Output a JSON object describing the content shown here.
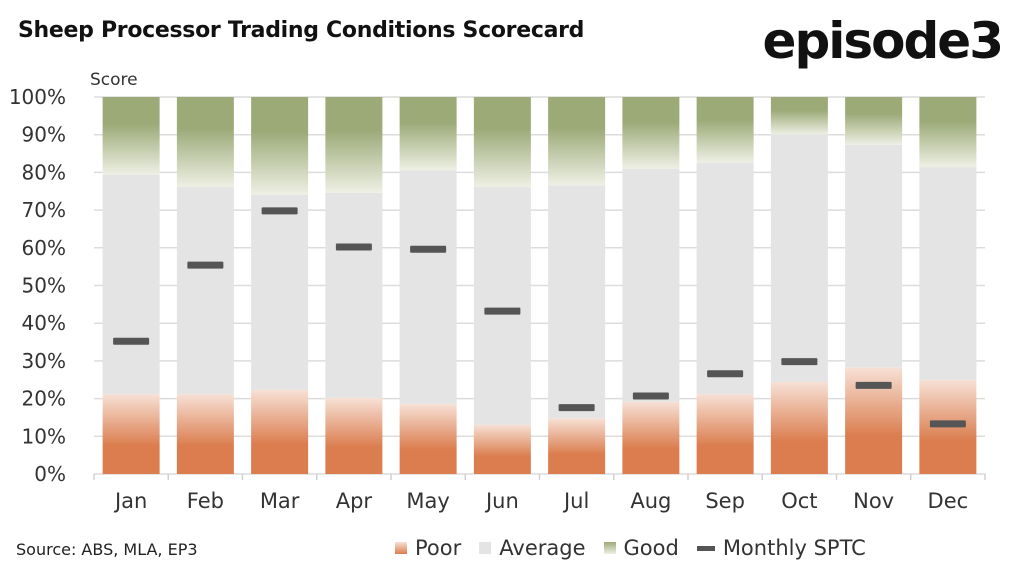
{
  "title": "Sheep Processor Trading Conditions Scorecard",
  "logo": "episode3",
  "source": "Source: ABS, MLA, EP3",
  "chart_data": {
    "type": "bar",
    "stacked": true,
    "ylabel": "Score",
    "ylim": [
      0,
      100
    ],
    "yticks": [
      "0%",
      "10%",
      "20%",
      "30%",
      "40%",
      "50%",
      "60%",
      "70%",
      "80%",
      "90%",
      "100%"
    ],
    "categories": [
      "Jan",
      "Feb",
      "Mar",
      "Apr",
      "May",
      "Jun",
      "Jul",
      "Aug",
      "Sep",
      "Oct",
      "Nov",
      "Dec"
    ],
    "series": [
      {
        "name": "Poor",
        "color": "#db7d4e",
        "values": [
          21.2,
          21.2,
          22.3,
          20.2,
          18.6,
          13.1,
          14.8,
          19.2,
          21.2,
          24.4,
          28.3,
          25.0
        ]
      },
      {
        "name": "Average",
        "color": "#e4e4e4",
        "values": [
          58.2,
          54.9,
          51.8,
          54.4,
          61.9,
          63.0,
          61.8,
          61.8,
          61.4,
          65.6,
          59.0,
          56.4
        ]
      },
      {
        "name": "Good",
        "color": "#9caa78",
        "values": [
          20.6,
          23.9,
          25.9,
          25.4,
          19.5,
          23.9,
          23.4,
          19.0,
          17.4,
          10.0,
          12.7,
          18.6
        ]
      }
    ],
    "line_marker_series": {
      "name": "Monthly SPTC",
      "color": "#555555",
      "values": [
        35.2,
        55.4,
        69.8,
        60.2,
        59.6,
        43.2,
        17.6,
        20.7,
        26.6,
        29.8,
        23.5,
        13.3
      ]
    },
    "legend": [
      "Poor",
      "Average",
      "Good",
      "Monthly SPTC"
    ],
    "legend_position": "bottom",
    "grid": true
  }
}
